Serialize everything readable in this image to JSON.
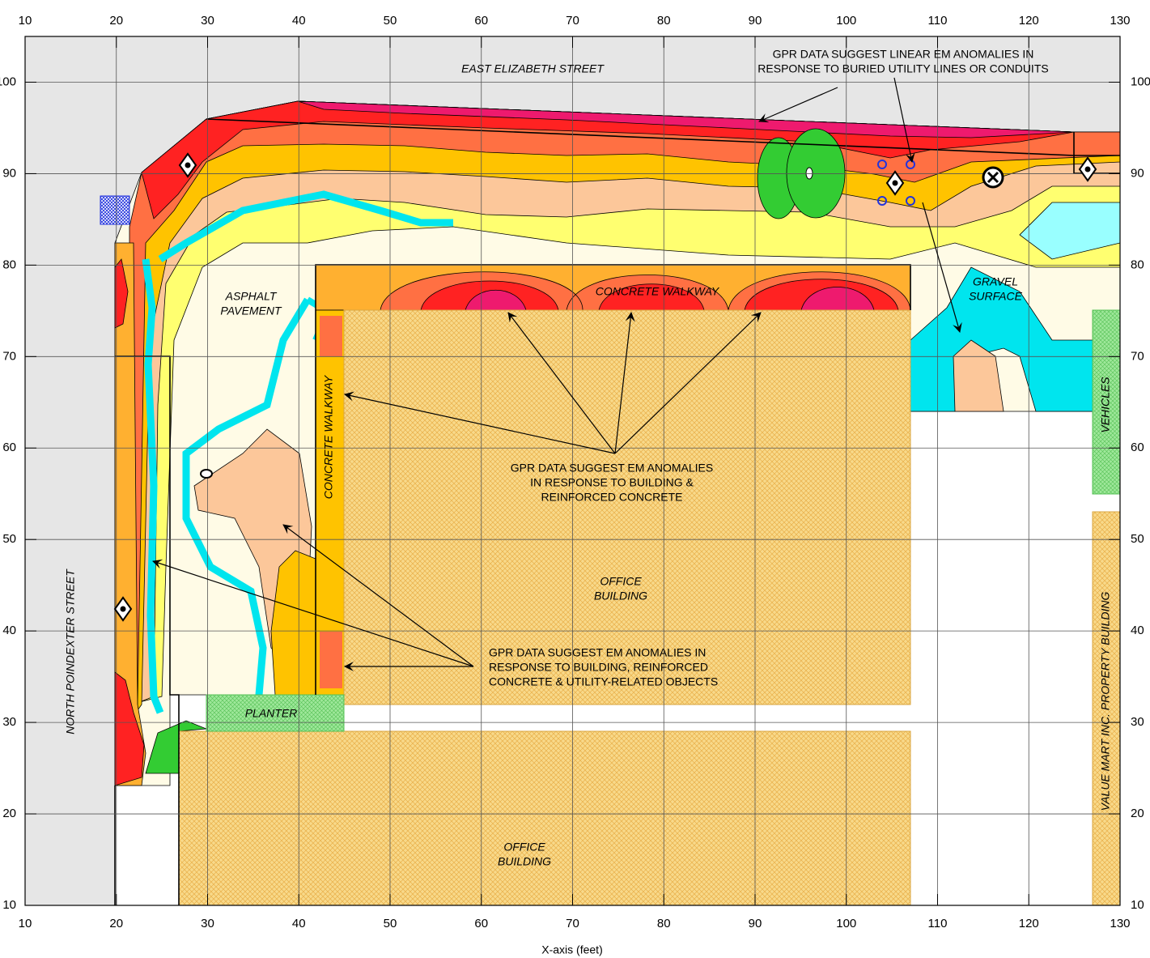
{
  "chart_data": {
    "type": "map",
    "xlabel": "X-axis (feet)",
    "xlim": [
      10,
      130
    ],
    "ylim": [
      10,
      105
    ],
    "xticks": [
      10,
      20,
      30,
      40,
      50,
      60,
      70,
      80,
      90,
      100,
      110,
      120,
      130
    ],
    "yticks": [
      10,
      20,
      30,
      40,
      50,
      60,
      70,
      80,
      90,
      100
    ],
    "grid": true,
    "annotations": [
      {
        "lines": [
          "EAST ELIZABETH STREET"
        ]
      },
      {
        "lines": [
          "GPR DATA SUGGEST LINEAR EM ANOMALIES IN",
          "RESPONSE TO BURIED UTILITY LINES OR CONDUITS"
        ]
      },
      {
        "lines": [
          "ASPHALT",
          "PAVEMENT"
        ]
      },
      {
        "lines": [
          "CONCRETE WALKWAY"
        ]
      },
      {
        "lines": [
          "GRAVEL",
          "SURFACE"
        ]
      },
      {
        "lines": [
          "CONCRETE WALKWAY"
        ]
      },
      {
        "lines": [
          "VEHICLES"
        ]
      },
      {
        "lines": [
          "GPR DATA SUGGEST EM ANOMALIES",
          "IN RESPONSE TO BUILDING &",
          "REINFORCED CONCRETE"
        ]
      },
      {
        "lines": [
          "OFFICE",
          "BUILDING"
        ]
      },
      {
        "lines": [
          "NORTH POINDEXTER STREET"
        ]
      },
      {
        "lines": [
          "VALUE MART INC. PROPERTY BUILDING"
        ]
      },
      {
        "lines": [
          "GPR DATA SUGGEST EM ANOMALIES IN",
          "RESPONSE TO BUILDING, REINFORCED",
          "CONCRETE & UTILITY-RELATED OBJECTS"
        ]
      },
      {
        "lines": [
          "PLANTER"
        ]
      },
      {
        "lines": [
          "OFFICE",
          "BUILDING"
        ]
      }
    ]
  }
}
